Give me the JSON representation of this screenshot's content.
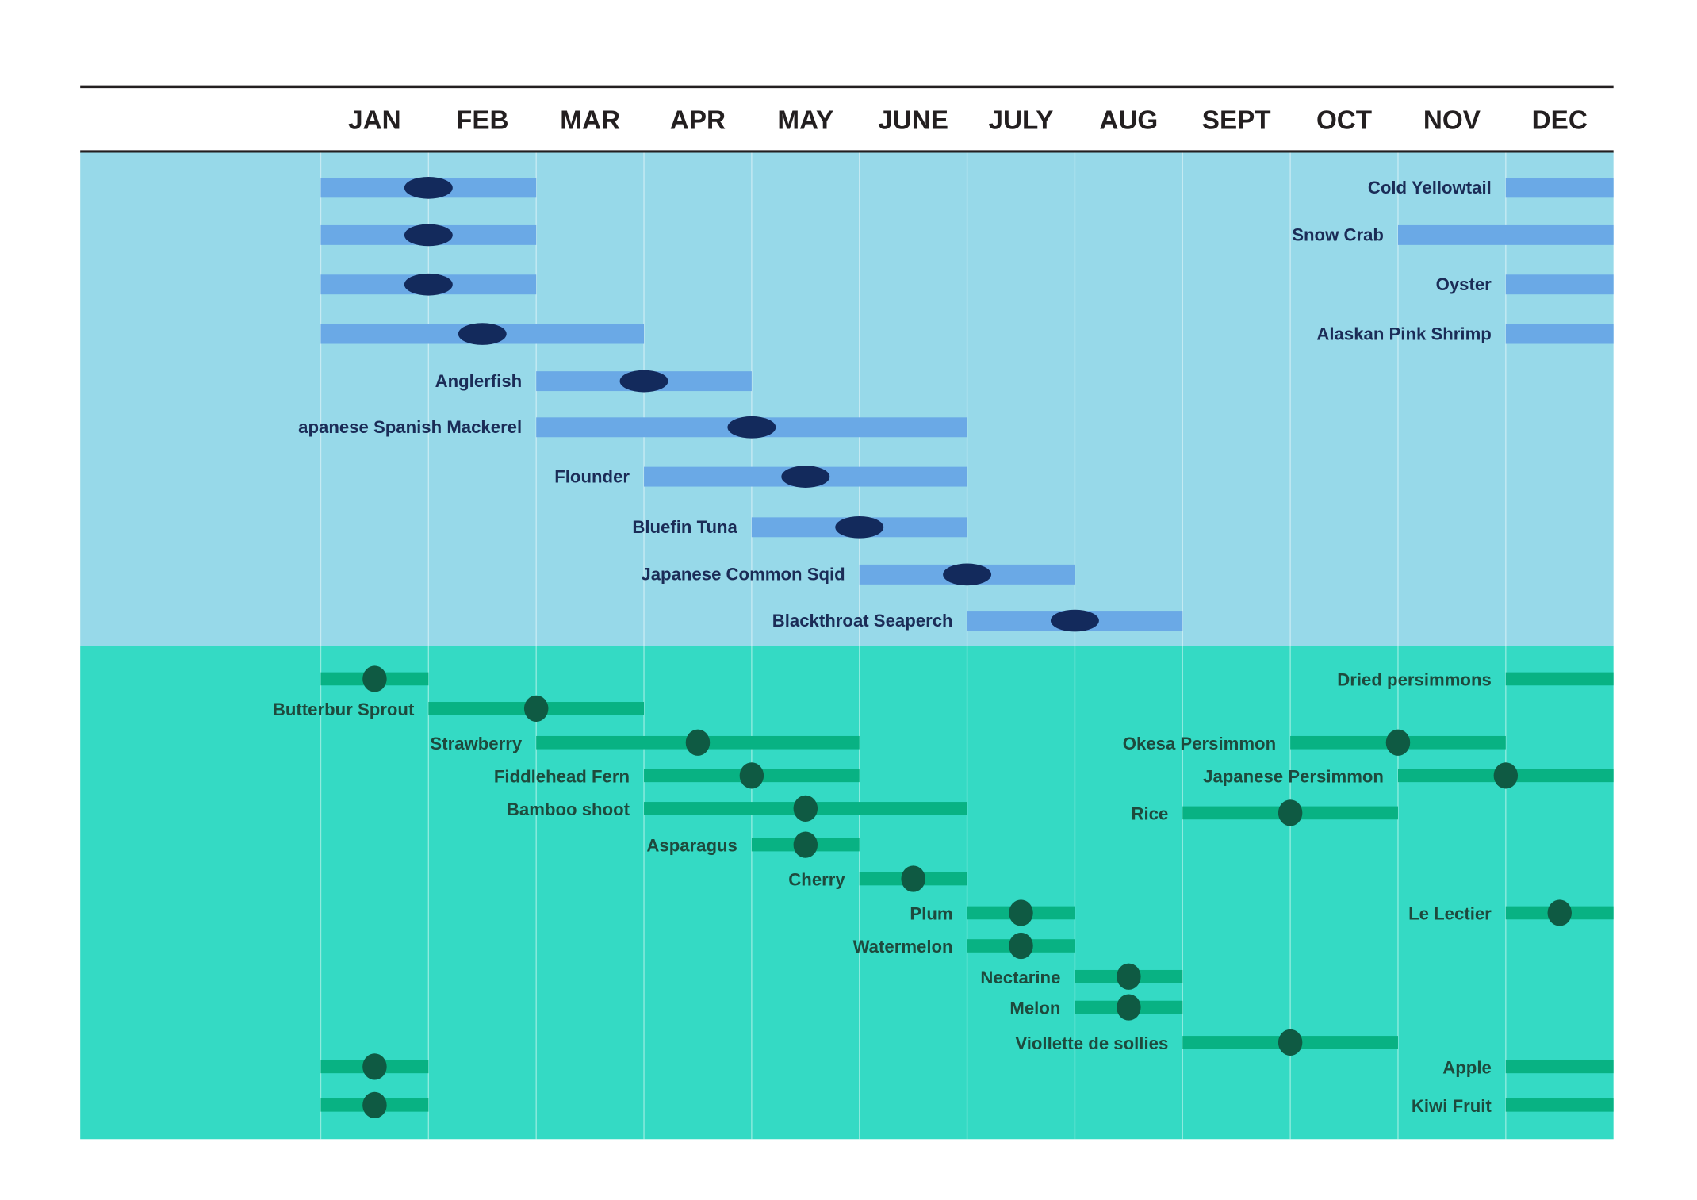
{
  "chart_data": {
    "type": "season-timeline",
    "categories": [
      "JAN",
      "FEB",
      "MAR",
      "APR",
      "MAY",
      "JUNE",
      "JULY",
      "AUG",
      "SEPT",
      "OCT",
      "NOV",
      "DEC"
    ],
    "groups": [
      {
        "background": "#97d9e9",
        "bar_color": "#6aa9e6",
        "text_color": "#1b2c57",
        "icon_color": "#132a5c",
        "items": [
          {
            "name": "Cold Yellowtail",
            "periods": [
              [
                12,
                12
              ],
              [
                1,
                2
              ]
            ]
          },
          {
            "name": "Snow Crab",
            "periods": [
              [
                11,
                12
              ],
              [
                1,
                2
              ]
            ]
          },
          {
            "name": "Oyster",
            "periods": [
              [
                12,
                12
              ],
              [
                1,
                2
              ]
            ]
          },
          {
            "name": "Alaskan Pink Shrimp",
            "periods": [
              [
                12,
                12
              ],
              [
                1,
                3
              ]
            ]
          },
          {
            "name": "Anglerfish",
            "periods": [
              [
                3,
                4
              ]
            ]
          },
          {
            "name": "apanese Spanish Mackerel",
            "periods": [
              [
                3,
                6
              ]
            ]
          },
          {
            "name": "Flounder",
            "periods": [
              [
                4,
                6
              ]
            ]
          },
          {
            "name": "Bluefin Tuna",
            "periods": [
              [
                5,
                6
              ]
            ]
          },
          {
            "name": "Japanese Common Sqid",
            "periods": [
              [
                6,
                7
              ]
            ]
          },
          {
            "name": "Blackthroat Seaperch",
            "periods": [
              [
                7,
                8
              ]
            ]
          }
        ]
      },
      {
        "background": "#34dac4",
        "bar_color": "#08b283",
        "text_color": "#1e4a3d",
        "icon_color": "#0f5a43",
        "items": [
          {
            "name": "Dried persimmons",
            "periods": [
              [
                12,
                12
              ],
              [
                1,
                1
              ]
            ]
          },
          {
            "name": "Butterbur Sprout",
            "periods": [
              [
                2,
                3
              ]
            ]
          },
          {
            "name": "Strawberry",
            "periods": [
              [
                3,
                5
              ]
            ]
          },
          {
            "name": "Okesa Persimmon",
            "periods": [
              [
                10,
                11
              ]
            ]
          },
          {
            "name": "Fiddlehead Fern",
            "periods": [
              [
                4,
                5
              ]
            ]
          },
          {
            "name": "Japanese Persimmon",
            "periods": [
              [
                11,
                12
              ]
            ]
          },
          {
            "name": "Bamboo shoot",
            "periods": [
              [
                4,
                6
              ]
            ]
          },
          {
            "name": "Rice",
            "periods": [
              [
                9,
                10
              ]
            ]
          },
          {
            "name": "Asparagus",
            "periods": [
              [
                5,
                5
              ]
            ]
          },
          {
            "name": "Cherry",
            "periods": [
              [
                6,
                6
              ]
            ]
          },
          {
            "name": "Plum",
            "periods": [
              [
                7,
                7
              ]
            ]
          },
          {
            "name": "Le Lectier",
            "periods": [
              [
                12,
                12
              ]
            ]
          },
          {
            "name": "Watermelon",
            "periods": [
              [
                7,
                7
              ]
            ]
          },
          {
            "name": "Nectarine",
            "periods": [
              [
                8,
                8
              ]
            ]
          },
          {
            "name": "Melon",
            "periods": [
              [
                8,
                8
              ]
            ]
          },
          {
            "name": "Viollette de sollies",
            "periods": [
              [
                9,
                10
              ]
            ]
          },
          {
            "name": "Apple",
            "periods": [
              [
                12,
                12
              ],
              [
                1,
                1
              ]
            ]
          },
          {
            "name": "Kiwi Fruit",
            "periods": [
              [
                12,
                12
              ],
              [
                1,
                1
              ]
            ]
          }
        ]
      }
    ]
  }
}
